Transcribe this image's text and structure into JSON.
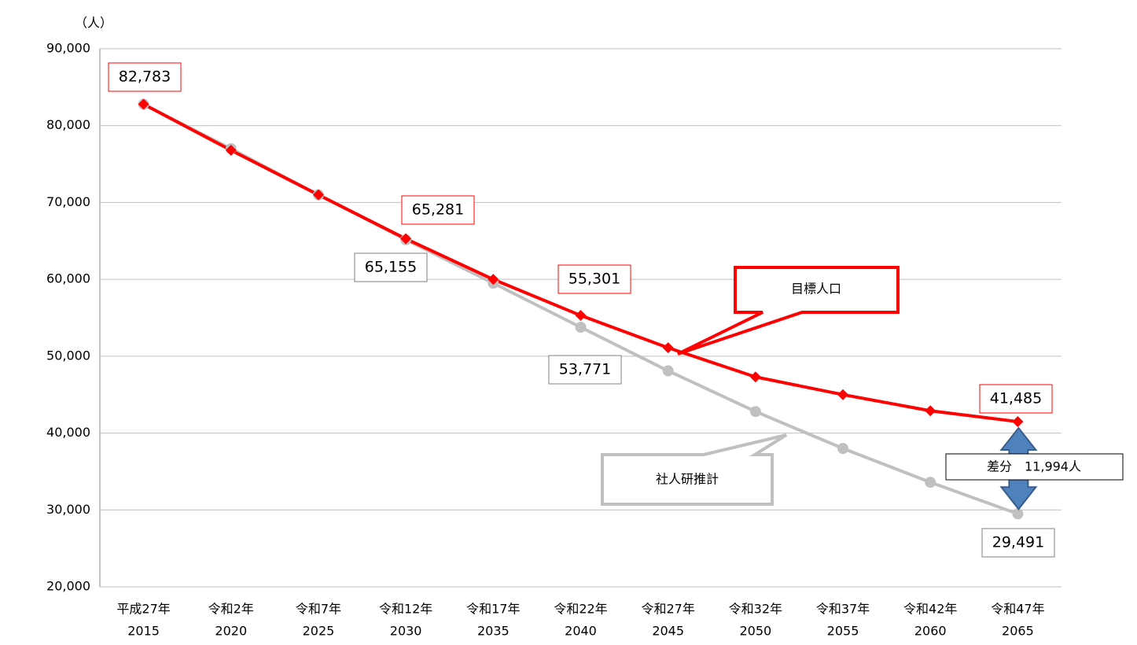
{
  "chart_data": {
    "type": "line",
    "y_unit_label": "（人）",
    "categories": [
      [
        "平成27年",
        "2015"
      ],
      [
        "令和2年",
        "2020"
      ],
      [
        "令和7年",
        "2025"
      ],
      [
        "令和12年",
        "2030"
      ],
      [
        "令和17年",
        "2035"
      ],
      [
        "令和22年",
        "2040"
      ],
      [
        "令和27年",
        "2045"
      ],
      [
        "令和32年",
        "2050"
      ],
      [
        "令和37年",
        "2055"
      ],
      [
        "令和42年",
        "2060"
      ],
      [
        "令和47年",
        "2065"
      ]
    ],
    "series": [
      {
        "name": "社人研推計",
        "color": "#c0c0c0",
        "label_border": "#808080",
        "marker": "circle",
        "values": [
          82783,
          77000,
          71000,
          65155,
          59500,
          53771,
          48100,
          42800,
          38000,
          33600,
          29491
        ],
        "value_labels": [
          null,
          null,
          null,
          "65,155",
          null,
          "53,771",
          null,
          null,
          null,
          null,
          "29,491"
        ]
      },
      {
        "name": "目標人口",
        "color": "#ff0000",
        "label_border": "#ff0000",
        "marker": "diamond",
        "values": [
          82783,
          76800,
          71000,
          65281,
          60000,
          55301,
          51100,
          47300,
          45000,
          42900,
          41485
        ],
        "value_labels": [
          "82,783",
          null,
          null,
          "65,281",
          null,
          "55,301",
          null,
          null,
          null,
          null,
          "41,485"
        ]
      }
    ],
    "difference_label": "差分　11,994人",
    "ylim": [
      20000,
      90000
    ],
    "yticks": [
      {
        "value": 20000,
        "label": "20,000"
      },
      {
        "value": 30000,
        "label": "30,000"
      },
      {
        "value": 40000,
        "label": "40,000"
      },
      {
        "value": 50000,
        "label": "50,000"
      },
      {
        "value": 60000,
        "label": "60,000"
      },
      {
        "value": 70000,
        "label": "70,000"
      },
      {
        "value": 80000,
        "label": "80,000"
      },
      {
        "value": 90000,
        "label": "90,000"
      }
    ],
    "grid": true
  }
}
